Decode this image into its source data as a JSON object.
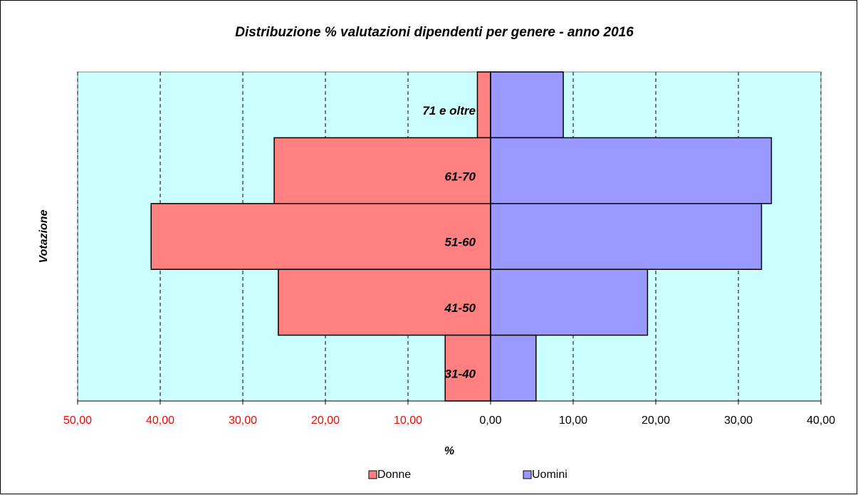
{
  "chart_data": {
    "type": "pyramid",
    "title": "Distribuzione % valutazioni dipendenti per genere - anno 2016",
    "categories": [
      "71 e oltre",
      "61-70",
      "51-60",
      "41-50",
      "31-40"
    ],
    "series": [
      {
        "name": "Donne",
        "color": "#ff8080",
        "values": [
          -1.6,
          -26.2,
          -41.1,
          -25.7,
          -5.5
        ]
      },
      {
        "name": "Uomini",
        "color": "#9999ff",
        "values": [
          8.8,
          34.0,
          32.8,
          19.0,
          5.5
        ]
      }
    ],
    "xlabel": "%",
    "ylabel": "Votazione",
    "xlim": [
      -50,
      40
    ],
    "xticks": [
      {
        "value": -50,
        "label": "50,00"
      },
      {
        "value": -40,
        "label": "40,00"
      },
      {
        "value": -30,
        "label": "30,00"
      },
      {
        "value": -20,
        "label": "20,00"
      },
      {
        "value": -10,
        "label": "10,00"
      },
      {
        "value": 0,
        "label": "0,00"
      },
      {
        "value": 10,
        "label": "10,00"
      },
      {
        "value": 20,
        "label": "20,00"
      },
      {
        "value": 30,
        "label": "30,00"
      },
      {
        "value": 40,
        "label": "40,00"
      }
    ],
    "negative_tick_color": "#ff0000",
    "plot_background": "#ccffff",
    "grid": true,
    "legend": "bottom"
  }
}
